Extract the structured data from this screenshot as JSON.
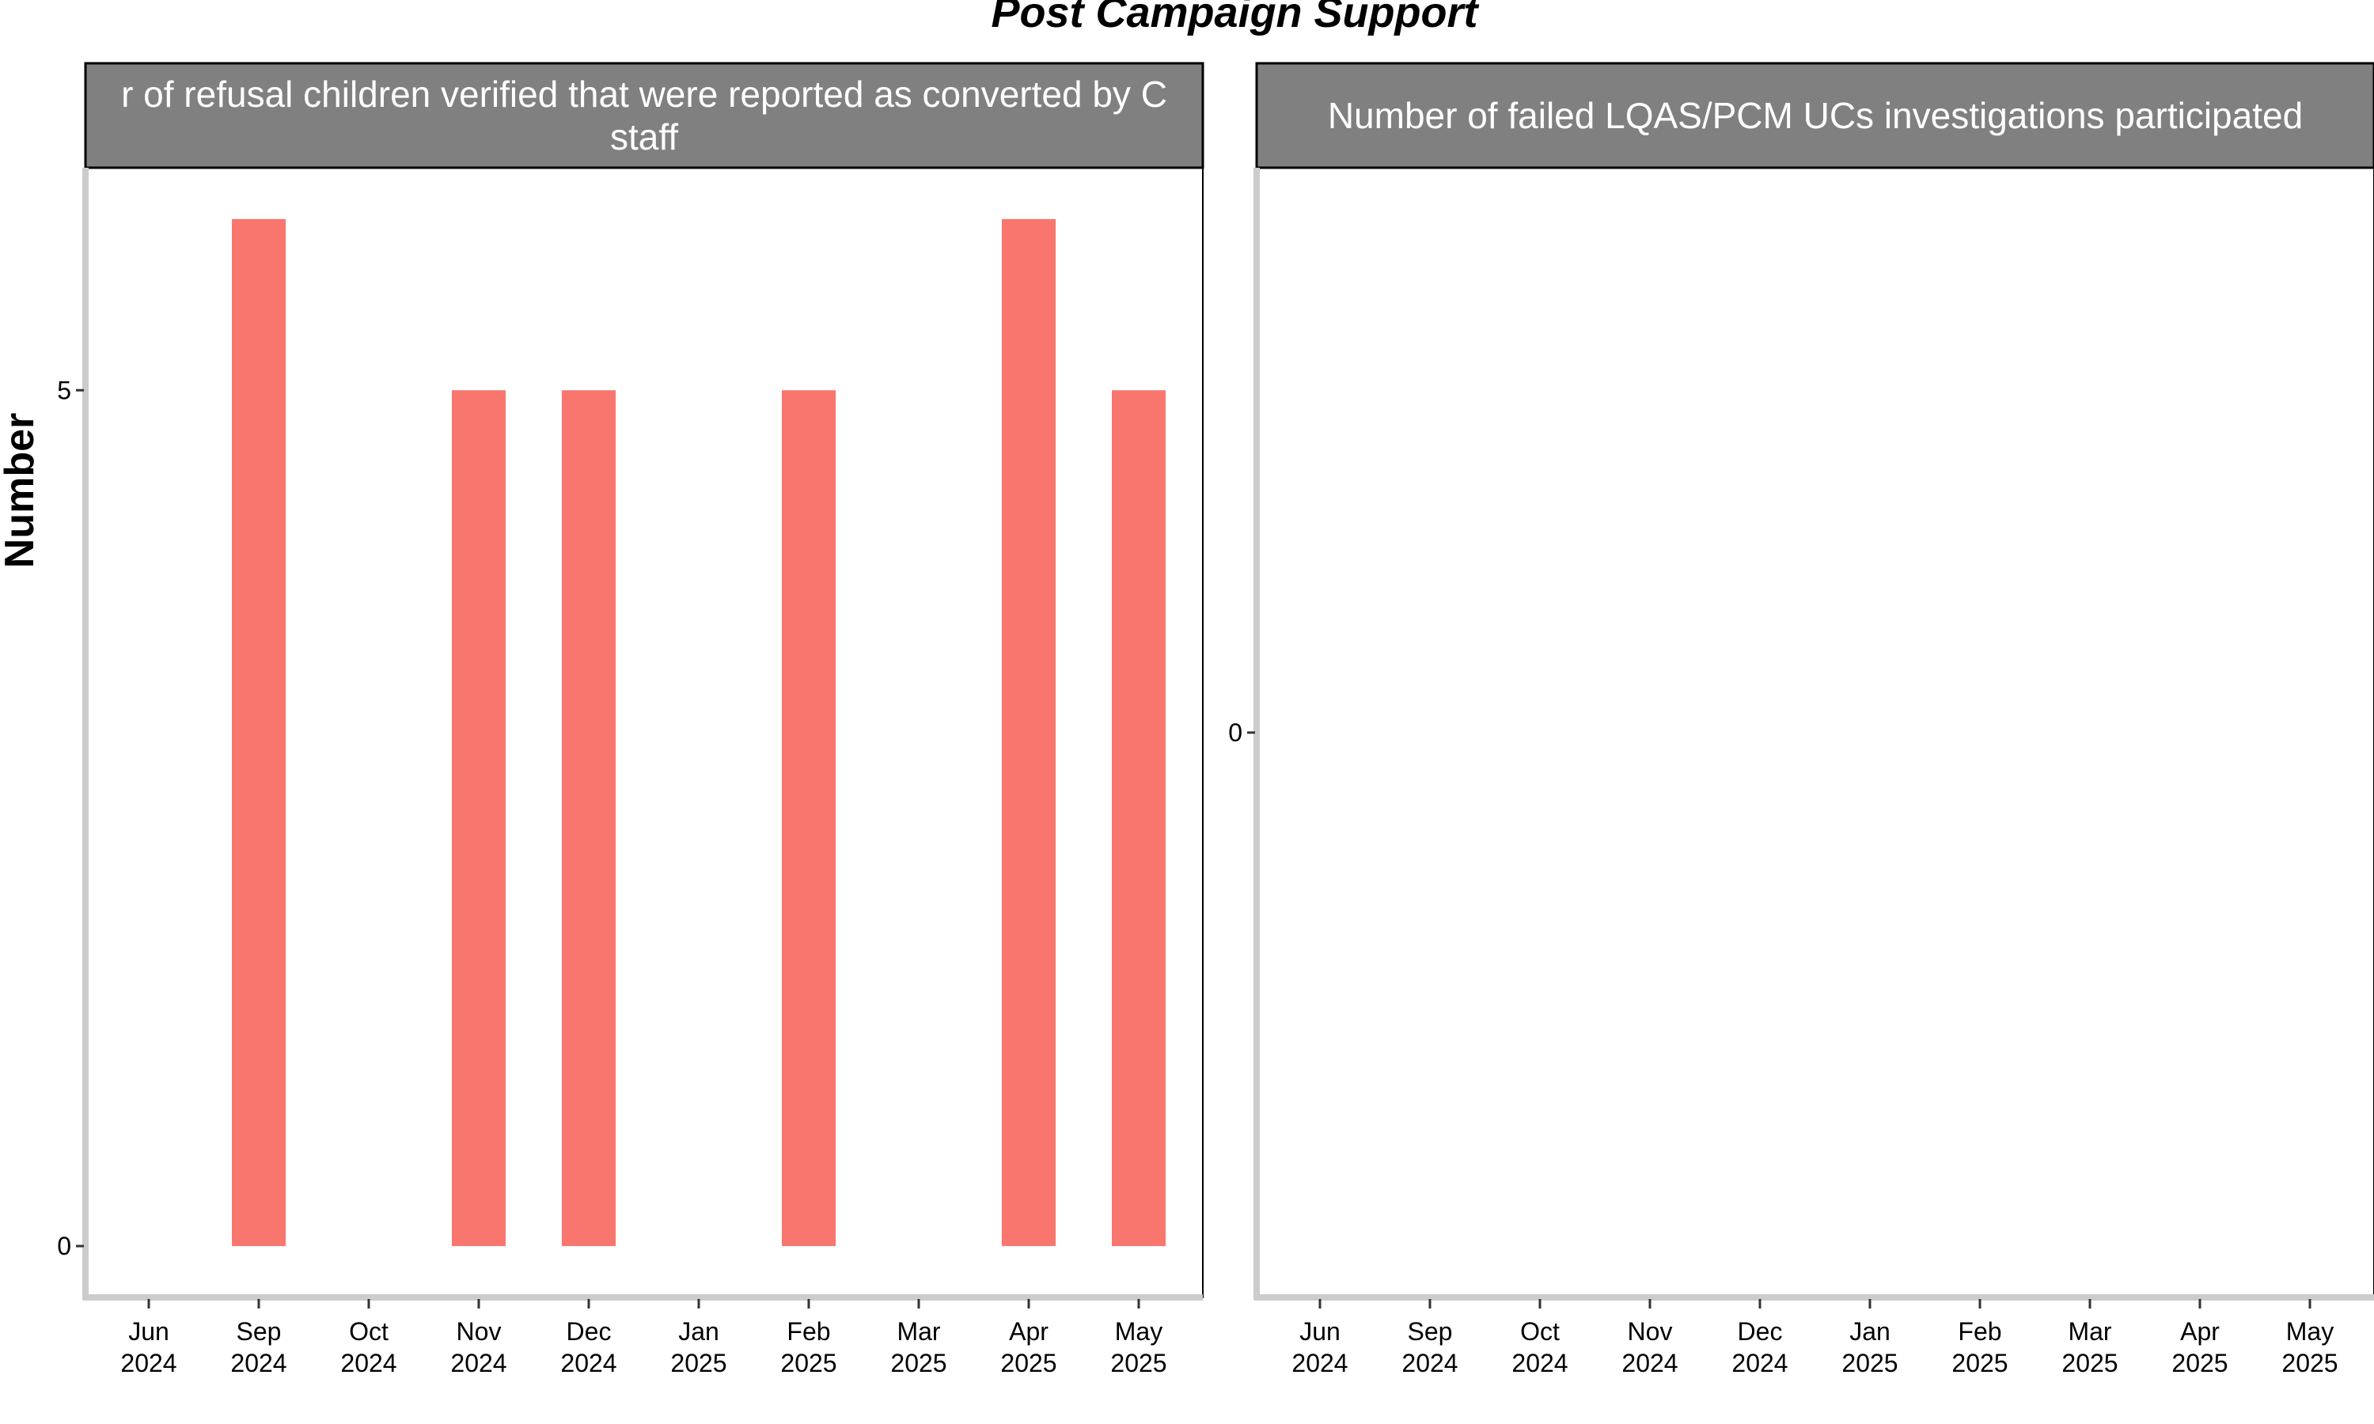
{
  "title": "Post Campaign Support",
  "ylabel": "Number",
  "colors": {
    "bar": "#F8766D",
    "strip_bg": "#808080",
    "strip_text": "#ffffff",
    "axis": "#cccccc",
    "border": "#000000"
  },
  "chart_data": [
    {
      "type": "bar",
      "panel_title": "Number of refusal children verified that were reported as converted by C staff",
      "panel_title_lines": [
        "r of refusal children verified that were reported as converted by C",
        "staff"
      ],
      "x_ticks": [
        "Jun 2024",
        "Sep 2024",
        "Oct 2024",
        "Nov 2024",
        "Dec 2024",
        "Jan 2025",
        "Feb 2025",
        "Mar 2025",
        "Apr 2025",
        "May 2025"
      ],
      "categories": [
        "Jun 2024",
        "Sep 2024",
        "Oct 2024",
        "Nov 2024",
        "Dec 2024",
        "Jan 2025",
        "Feb 2025",
        "Mar 2025",
        "Apr 2025",
        "May 2025"
      ],
      "values": [
        null,
        6,
        null,
        5,
        5,
        null,
        5,
        null,
        6,
        5
      ],
      "yticks": [
        0,
        5
      ],
      "ylim": [
        -0.3,
        6.3
      ],
      "ylabel": "Number",
      "xlabel": ""
    },
    {
      "type": "bar",
      "panel_title": "Number of failed LQAS/PCM UCs investigations participated",
      "panel_title_lines": [
        "Number of failed LQAS/PCM UCs investigations participated"
      ],
      "x_ticks": [
        "Jun 2024",
        "Sep 2024",
        "Oct 2024",
        "Nov 2024",
        "Dec 2024",
        "Jan 2025",
        "Feb 2025",
        "Mar 2025",
        "Apr 2025",
        "May 2025"
      ],
      "categories": [
        "Jun 2024",
        "Sep 2024",
        "Oct 2024",
        "Nov 2024",
        "Dec 2024",
        "Jan 2025",
        "Feb 2025",
        "Mar 2025",
        "Apr 2025",
        "May 2025"
      ],
      "values": [
        null,
        null,
        null,
        null,
        null,
        null,
        null,
        null,
        null,
        null
      ],
      "yticks": [
        0
      ],
      "ylim": [
        -1,
        1
      ],
      "ylabel": "",
      "xlabel": ""
    }
  ]
}
